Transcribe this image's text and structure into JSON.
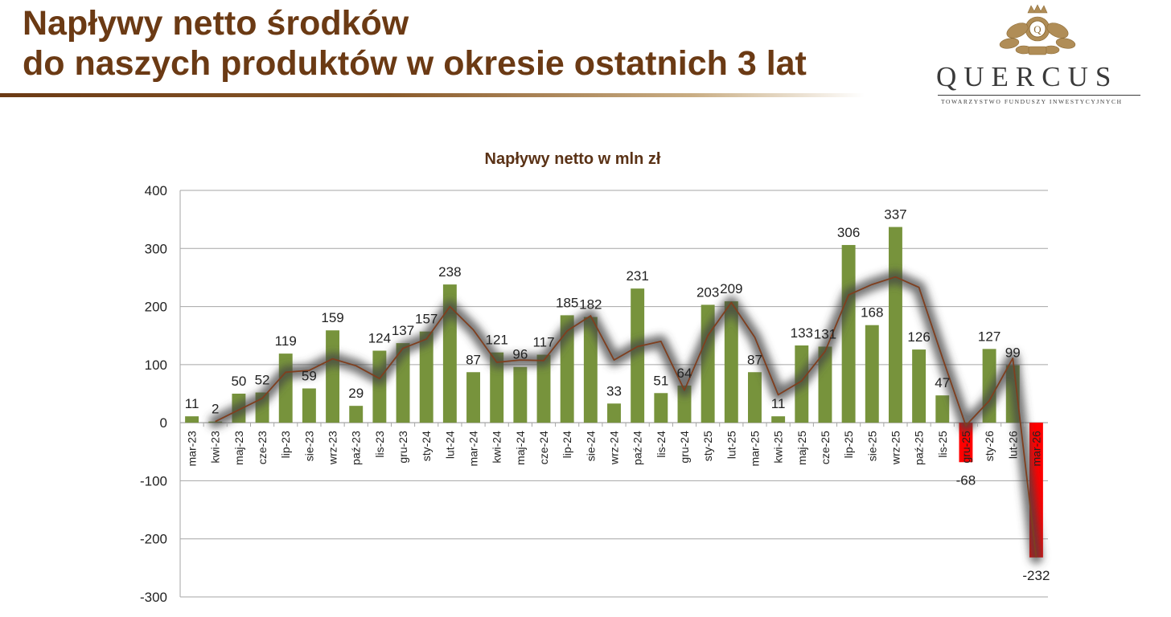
{
  "slide": {
    "title_line1": "Napływy netto środków",
    "title_line2": "do naszych produktów w okresie ostatnich 3 lat"
  },
  "logo": {
    "wordmark": "QUERCUS",
    "subtitle": "TOWARZYSTWO FUNDUSZY INWESTYCYJNYCH",
    "emblem_icon": "crowned-oak-emblem-icon",
    "color": "#b08d57"
  },
  "colors": {
    "title": "#6b3a14",
    "positive_bar": "#77933c",
    "negative_bar": "#ff0000",
    "trend_line": "#7f3f1f",
    "trend_shadow": "#444444",
    "grid": "#a6a6a6"
  },
  "chart_data": {
    "type": "bar",
    "title": "Napływy netto w mln zł",
    "xlabel": "",
    "ylabel": "",
    "ylim": [
      -300,
      400
    ],
    "yticks": [
      -300,
      -200,
      -100,
      0,
      100,
      200,
      300,
      400
    ],
    "grid": true,
    "legend": "none",
    "categories": [
      "mar-23",
      "kwi-23",
      "maj-23",
      "cze-23",
      "lip-23",
      "sie-23",
      "wrz-23",
      "paź-23",
      "lis-23",
      "gru-23",
      "sty-24",
      "lut-24",
      "mar-24",
      "kwi-24",
      "maj-24",
      "cze-24",
      "lip-24",
      "sie-24",
      "wrz-24",
      "paź-24",
      "lis-24",
      "gru-24",
      "sty-25",
      "lut-25",
      "mar-25",
      "kwi-25",
      "maj-25",
      "cze-25",
      "lip-25",
      "sie-25",
      "wrz-25",
      "paź-25",
      "lis-25",
      "gru-25",
      "sty-26",
      "lut-26",
      "mar-26"
    ],
    "values": [
      11,
      2,
      50,
      52,
      119,
      59,
      159,
      29,
      124,
      137,
      157,
      238,
      87,
      121,
      96,
      117,
      185,
      182,
      33,
      231,
      51,
      64,
      203,
      209,
      87,
      11,
      133,
      131,
      306,
      168,
      337,
      126,
      47,
      -68,
      127,
      99,
      -232
    ],
    "trend_line": [
      null,
      2,
      22,
      42,
      87,
      90,
      110,
      98,
      76,
      128,
      144,
      200,
      160,
      104,
      108,
      107,
      158,
      184,
      108,
      131,
      140,
      56,
      150,
      207,
      147,
      48,
      72,
      123,
      220,
      238,
      251,
      233,
      112,
      -5,
      38,
      111,
      -232
    ]
  }
}
